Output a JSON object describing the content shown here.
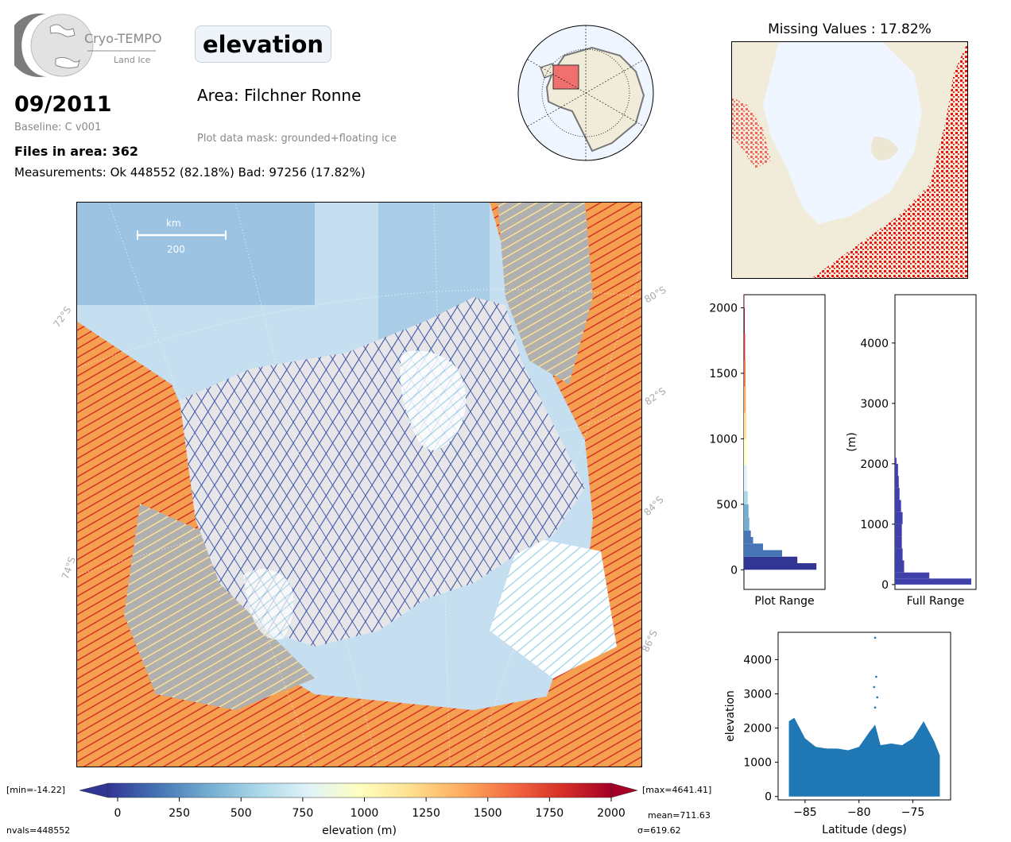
{
  "header": {
    "logo_name": "Cryo-TEMPO",
    "logo_sub": "Land Ice",
    "parameter": "elevation",
    "date": "09/2011",
    "baseline": "Baseline: C v001",
    "files": "Files in area: 362",
    "measurements": "Measurements: Ok 448552 (82.18%) Bad: 97256 (17.82%)",
    "area": "Area: Filchner Ronne",
    "mask": "Plot data mask: grounded+floating ice"
  },
  "map": {
    "scale_unit": "km",
    "scale_value": "200",
    "lat_labels_left": [
      "72°S",
      "74°S"
    ],
    "lat_labels_right": [
      "80°S",
      "82°S",
      "84°S",
      "86°S"
    ]
  },
  "missing": {
    "title": "Missing Values : 17.82%"
  },
  "colorbar": {
    "label": "elevation (m)",
    "min_label": "[min=-14.22]",
    "max_label": "[max=4641.41]",
    "ticks": [
      "0",
      "250",
      "500",
      "750",
      "1000",
      "1250",
      "1500",
      "1750",
      "2000"
    ],
    "nvals": "nvals=448552",
    "mean": "mean=711.63",
    "sigma": "σ=619.62",
    "colors": [
      "#313695",
      "#4575b4",
      "#74add1",
      "#abd9e9",
      "#e0f3f8",
      "#ffffbf",
      "#fee090",
      "#fdae61",
      "#f46d43",
      "#d73027",
      "#a50026"
    ]
  },
  "chart_data": [
    {
      "type": "bar",
      "orientation": "horizontal",
      "xlabel": "Plot Range",
      "ylabel": "",
      "ylim": [
        -150,
        2100
      ],
      "yticks": [
        "0",
        "500",
        "1000",
        "1500",
        "2000"
      ],
      "bins": [
        0,
        50,
        100,
        150,
        200,
        250,
        300,
        400,
        500,
        600,
        800,
        1000,
        1200,
        1400,
        1600,
        1800,
        2000
      ],
      "values": [
        0.95,
        0.7,
        0.5,
        0.25,
        0.12,
        0.09,
        0.07,
        0.06,
        0.05,
        0.04,
        0.035,
        0.03,
        0.025,
        0.02,
        0.015,
        0.01,
        0.005
      ]
    },
    {
      "type": "bar",
      "orientation": "horizontal",
      "xlabel": "Full Range",
      "ylabel": "(m)",
      "ylim": [
        -80,
        4800
      ],
      "yticks": [
        "0",
        "1000",
        "2000",
        "3000",
        "4000"
      ],
      "bins": [
        0,
        100,
        200,
        400,
        600,
        800,
        1000,
        1200,
        1400,
        1600,
        1800,
        2000
      ],
      "values": [
        1.0,
        0.45,
        0.12,
        0.1,
        0.09,
        0.09,
        0.1,
        0.08,
        0.06,
        0.05,
        0.04,
        0.02
      ],
      "color": "#4040aa"
    },
    {
      "type": "scatter",
      "xlabel": "Latitude (degs)",
      "ylabel": "elevation",
      "xlim": [
        -87.5,
        -71.5
      ],
      "ylim": [
        -100,
        4800
      ],
      "xticks": [
        "−85",
        "−80",
        "−75"
      ],
      "yticks": [
        "0",
        "1000",
        "2000",
        "3000",
        "4000"
      ],
      "color": "#1f77b4",
      "upper_envelope": [
        [
          -86.5,
          2200
        ],
        [
          -86,
          2300
        ],
        [
          -85,
          1700
        ],
        [
          -84,
          1450
        ],
        [
          -83,
          1400
        ],
        [
          -82,
          1400
        ],
        [
          -81,
          1350
        ],
        [
          -80,
          1450
        ],
        [
          -79,
          1900
        ],
        [
          -78.5,
          2100
        ],
        [
          -78,
          1500
        ],
        [
          -77,
          1550
        ],
        [
          -76,
          1500
        ],
        [
          -75,
          1700
        ],
        [
          -74,
          2200
        ],
        [
          -73,
          1600
        ],
        [
          -72.5,
          1200
        ]
      ],
      "outliers": [
        [
          -78.5,
          4641
        ],
        [
          -78.4,
          3500
        ],
        [
          -78.6,
          3200
        ],
        [
          -78.3,
          2900
        ],
        [
          -78.5,
          2600
        ]
      ]
    }
  ]
}
